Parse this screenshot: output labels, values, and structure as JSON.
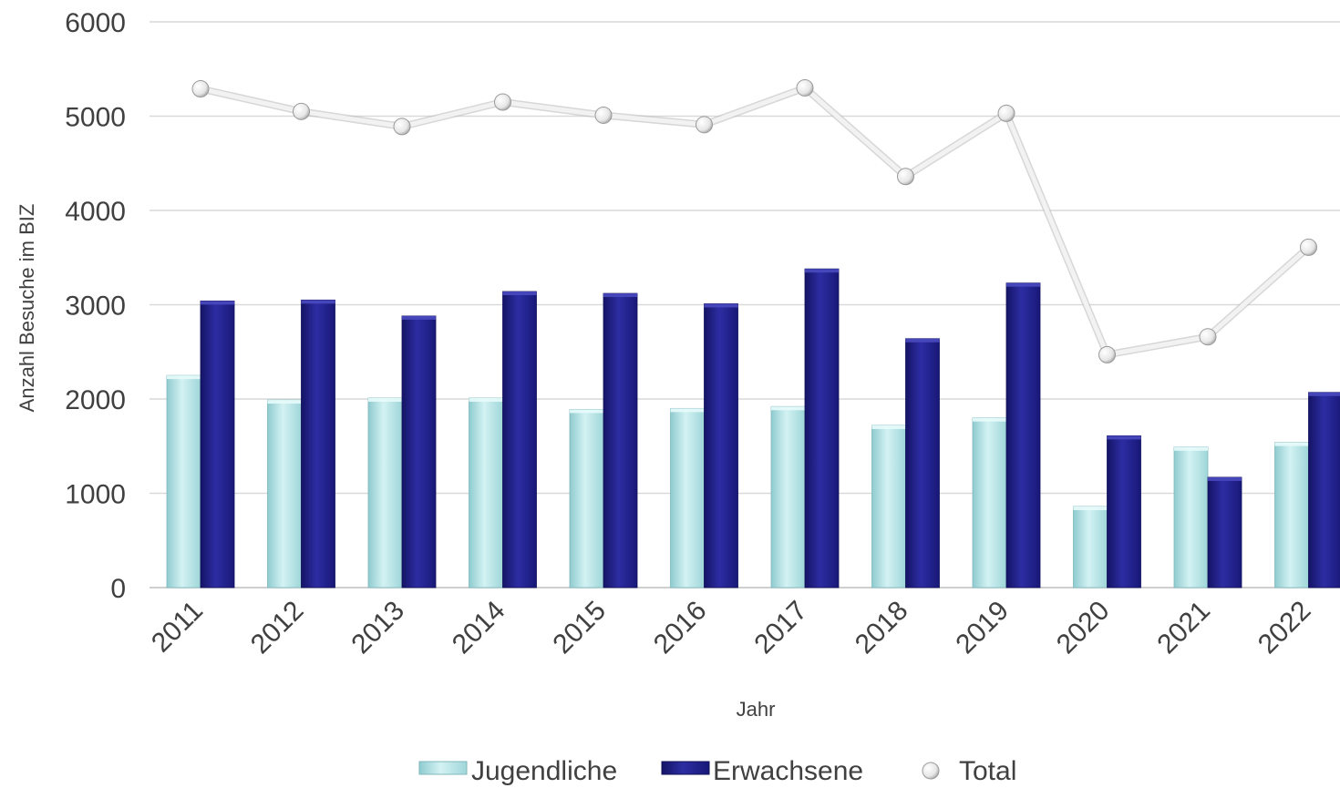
{
  "chart_data": {
    "type": "bar",
    "title": "",
    "xlabel": "Jahr",
    "ylabel": "Anzahl Besuche im BIZ",
    "ylim": [
      0,
      6000
    ],
    "yticks": [
      0,
      1000,
      2000,
      3000,
      4000,
      5000,
      6000
    ],
    "grid": true,
    "legend_position": "bottom",
    "categories": [
      "2011",
      "2012",
      "2013",
      "2014",
      "2015",
      "2016",
      "2017",
      "2018",
      "2019",
      "2020",
      "2021",
      "2022"
    ],
    "series": [
      {
        "name": "Jugendliche",
        "type": "bar",
        "color": "#b7e4e6",
        "values": [
          2250,
          1990,
          2010,
          2010,
          1890,
          1900,
          1920,
          1720,
          1800,
          860,
          1490,
          1540
        ]
      },
      {
        "name": "Erwachsene",
        "type": "bar",
        "color": "#23238e",
        "values": [
          3040,
          3050,
          2880,
          3140,
          3120,
          3010,
          3380,
          2640,
          3230,
          1610,
          1170,
          2070
        ]
      },
      {
        "name": "Total",
        "type": "line",
        "color": "#f2f2f2",
        "values": [
          5290,
          5050,
          4890,
          5150,
          5010,
          4910,
          5300,
          4360,
          5030,
          2470,
          2660,
          3610
        ]
      }
    ]
  }
}
